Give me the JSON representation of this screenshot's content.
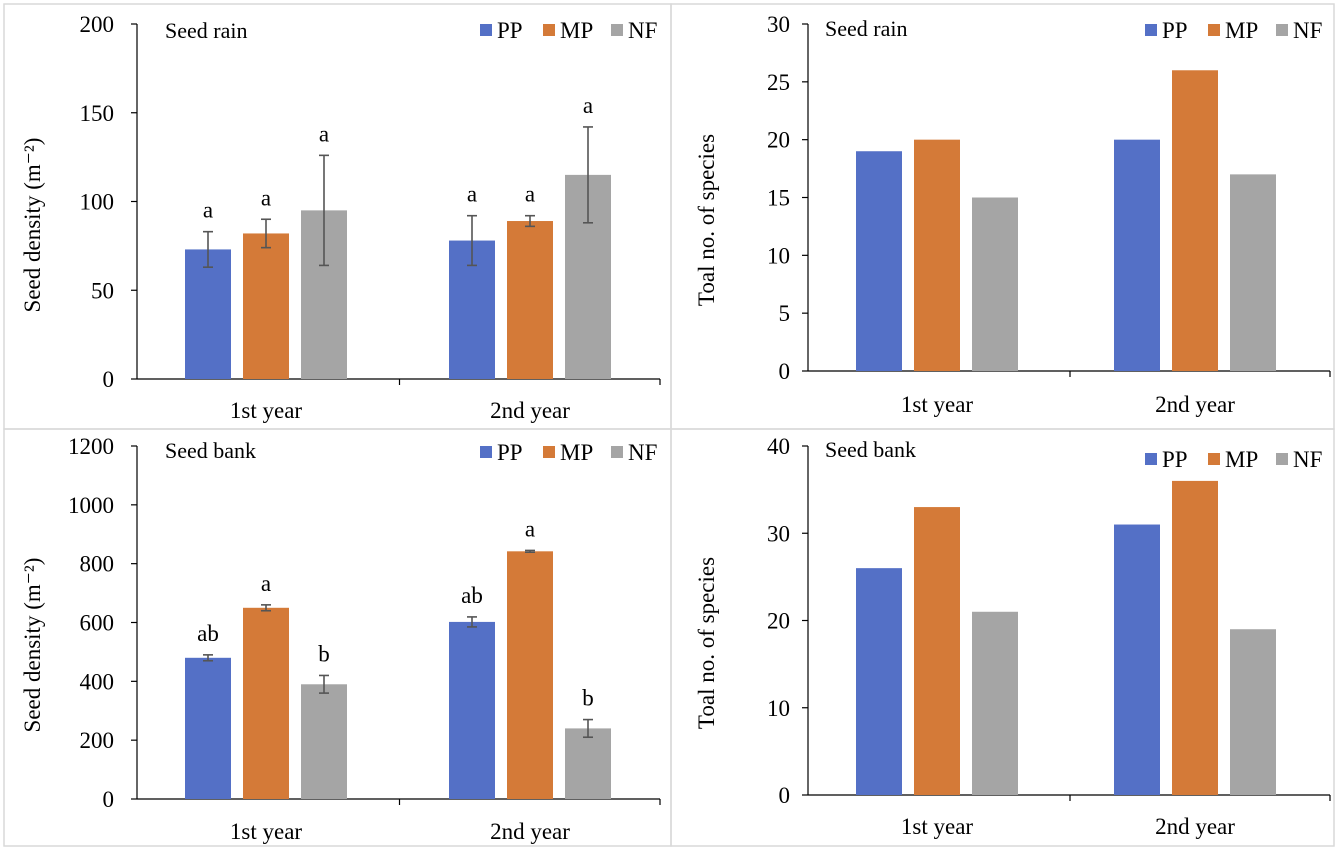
{
  "colors": {
    "PP": "#5470c6",
    "MP": "#d47a38",
    "NF": "#a5a5a5"
  },
  "chart_data": [
    {
      "type": "bar",
      "title": "Seed rain",
      "ylabel": "Seed density (m⁻²)",
      "ylim": [
        0,
        200
      ],
      "yticks": [
        "0",
        "50",
        "100",
        "150",
        "200"
      ],
      "categories": [
        "1st year",
        "2nd year"
      ],
      "legend": [
        "PP",
        "MP",
        "NF"
      ],
      "series": [
        {
          "name": "PP",
          "values": [
            73,
            78
          ],
          "errors": [
            10,
            14
          ],
          "labels": [
            "a",
            "a"
          ]
        },
        {
          "name": "MP",
          "values": [
            82,
            89
          ],
          "errors": [
            8,
            3
          ],
          "labels": [
            "a",
            "a"
          ]
        },
        {
          "name": "NF",
          "values": [
            95,
            115
          ],
          "errors": [
            31,
            27
          ],
          "labels": [
            "a",
            "a"
          ]
        }
      ]
    },
    {
      "type": "bar",
      "title": "Seed rain",
      "ylabel": "Toal no. of species",
      "ylim": [
        0,
        30
      ],
      "yticks": [
        "0",
        "5",
        "10",
        "15",
        "20",
        "25",
        "30"
      ],
      "categories": [
        "1st year",
        "2nd year"
      ],
      "legend": [
        "PP",
        "MP",
        "NF"
      ],
      "series": [
        {
          "name": "PP",
          "values": [
            19,
            20
          ]
        },
        {
          "name": "MP",
          "values": [
            20,
            26
          ]
        },
        {
          "name": "NF",
          "values": [
            15,
            17
          ]
        }
      ]
    },
    {
      "type": "bar",
      "title": "Seed bank",
      "ylabel": "Seed density (m⁻²)",
      "ylim": [
        0,
        1200
      ],
      "yticks": [
        "0",
        "200",
        "400",
        "600",
        "800",
        "1000",
        "1200"
      ],
      "categories": [
        "1st year",
        "2nd year"
      ],
      "legend": [
        "PP",
        "MP",
        "NF"
      ],
      "series": [
        {
          "name": "PP",
          "values": [
            480,
            602
          ],
          "errors": [
            10,
            17
          ],
          "labels": [
            "ab",
            "ab"
          ]
        },
        {
          "name": "MP",
          "values": [
            650,
            842
          ],
          "errors": [
            10,
            3
          ],
          "labels": [
            "a",
            "a"
          ]
        },
        {
          "name": "NF",
          "values": [
            390,
            240
          ],
          "errors": [
            30,
            30
          ],
          "labels": [
            "b",
            "b"
          ]
        }
      ]
    },
    {
      "type": "bar",
      "title": "Seed bank",
      "ylabel": "Toal no. of species",
      "ylim": [
        0,
        40
      ],
      "yticks": [
        "0",
        "10",
        "20",
        "30",
        "40"
      ],
      "categories": [
        "1st year",
        "2nd year"
      ],
      "legend": [
        "PP",
        "MP",
        "NF"
      ],
      "series": [
        {
          "name": "PP",
          "values": [
            26,
            31
          ]
        },
        {
          "name": "MP",
          "values": [
            33,
            36
          ]
        },
        {
          "name": "NF",
          "values": [
            21,
            19
          ]
        }
      ]
    }
  ]
}
